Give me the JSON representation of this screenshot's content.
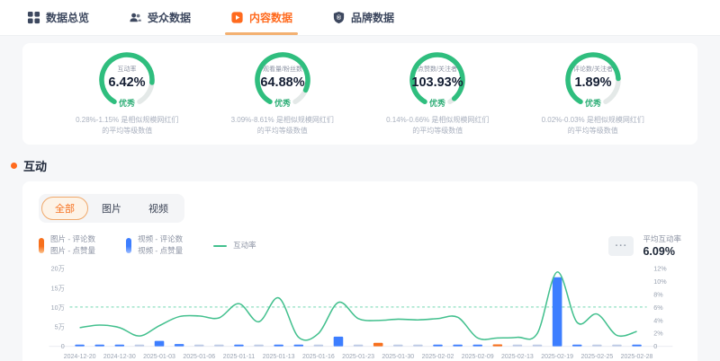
{
  "nav": {
    "tabs": [
      {
        "label": "数据总览",
        "icon": "grid-icon",
        "active": false
      },
      {
        "label": "受众数据",
        "icon": "audience-icon",
        "active": false
      },
      {
        "label": "内容数据",
        "icon": "content-icon",
        "active": true
      },
      {
        "label": "品牌数据",
        "icon": "brand-icon",
        "active": false
      }
    ]
  },
  "gauge_cards": [
    {
      "label": "互动率",
      "value": "6.42%",
      "grade": "优秀",
      "fraction": 0.82,
      "note1": "0.28%-1.15% 是相似规模网红们",
      "note2": "的平均等级数值"
    },
    {
      "label": "观看量/粉丝数",
      "value": "64.88%",
      "grade": "优秀",
      "fraction": 0.88,
      "note1": "3.09%-8.61% 是相似规模网红们",
      "note2": "的平均等级数值"
    },
    {
      "label": "点赞数/关注者",
      "value": "103.93%",
      "grade": "优秀",
      "fraction": 0.96,
      "note1": "0.14%-0.66% 是相似规模网红们",
      "note2": "的平均等级数值"
    },
    {
      "label": "评论数/关注者",
      "value": "1.89%",
      "grade": "优秀",
      "fraction": 0.79,
      "note1": "0.02%-0.03% 是相似规模网红们",
      "note2": "的平均等级数值"
    }
  ],
  "section": {
    "title": "互动"
  },
  "filter_tabs": [
    {
      "label": "全部",
      "active": true
    },
    {
      "label": "图片",
      "active": false
    },
    {
      "label": "视频",
      "active": false
    }
  ],
  "legend": [
    {
      "type": "bar",
      "color_key": "orange",
      "lines": [
        "图片 - 评论数",
        "图片 - 点赞量"
      ]
    },
    {
      "type": "bar",
      "color_key": "blue",
      "lines": [
        "视频 - 评论数",
        "视频 - 点赞量"
      ]
    },
    {
      "type": "line",
      "color_key": "green",
      "lines": [
        "互动率"
      ]
    }
  ],
  "avg_box": {
    "more": "···",
    "label": "平均互动率",
    "value": "6.09%"
  },
  "colors": {
    "accent_orange": "#ff6a1e",
    "navy": "#3d485f",
    "gauge_green": "#2fbe7e",
    "grade_green": "#2fae77",
    "track_gray": "#e4e9e8"
  },
  "chart_data": {
    "type": "bar",
    "x_tick_labels": [
      "2024-12-20",
      "2024-12-30",
      "2025-01-03",
      "2025-01-06",
      "2025-01-11",
      "2025-01-13",
      "2025-01-16",
      "2025-01-23",
      "2025-01-30",
      "2025-02-02",
      "2025-02-09",
      "2025-02-13",
      "2025-02-19",
      "2025-02-25",
      "2025-02-28"
    ],
    "bar_series": {
      "name": "评论数/点赞量",
      "unit": "万",
      "values": [
        0.4,
        0.3,
        0.35,
        0.25,
        1.4,
        0.6,
        0.25,
        0.2,
        0.3,
        0.2,
        0.3,
        0.3,
        0.2,
        2.5,
        0.2,
        0.9,
        0.25,
        0.2,
        0.35,
        0.4,
        0.35,
        0.5,
        0.2,
        0.2,
        17.8,
        0.4,
        0.2,
        0.3,
        0.35
      ],
      "colors": [
        "blue",
        "blue",
        "blue",
        "light",
        "blue",
        "blue",
        "light",
        "light",
        "blue",
        "light",
        "blue",
        "blue",
        "light",
        "blue",
        "light",
        "orange",
        "light",
        "light",
        "blue",
        "blue",
        "blue",
        "orange",
        "light",
        "light",
        "blue",
        "blue",
        "light",
        "light",
        "blue"
      ]
    },
    "line_series": {
      "name": "互动率",
      "unit": "%",
      "values": [
        2.9,
        3.3,
        2.9,
        1.6,
        3.2,
        4.6,
        4.7,
        4.4,
        6.6,
        3.8,
        7.5,
        1.4,
        2.0,
        6.8,
        4.3,
        4.0,
        4.2,
        4.1,
        4.3,
        4.5,
        1.3,
        1.3,
        1.4,
        2.0,
        11.5,
        3.7,
        5.0,
        1.7,
        2.3
      ]
    },
    "left_axis": {
      "tick_labels": [
        "20万",
        "15万",
        "10万",
        "5万",
        "0"
      ],
      "tick_values": [
        20,
        15,
        10,
        5,
        0
      ],
      "max": 20
    },
    "right_axis": {
      "tick_labels": [
        "12%",
        "10%",
        "8%",
        "6%",
        "4%",
        "2%",
        "0"
      ],
      "tick_values": [
        12,
        10,
        8,
        6,
        4,
        2,
        0
      ],
      "max": 12
    },
    "average_line": {
      "value": 6.09,
      "style": "dashed"
    },
    "legend_position": "top-left",
    "grid": false,
    "palette": {
      "blue": "#3d7eff",
      "light": "#bcc9e6",
      "orange": "#f7701d",
      "line_green": "#43c08e",
      "avg_green": "#8fdfc0",
      "axis_text": "#9aa3b2",
      "axis_line": "#e7eaef"
    }
  }
}
